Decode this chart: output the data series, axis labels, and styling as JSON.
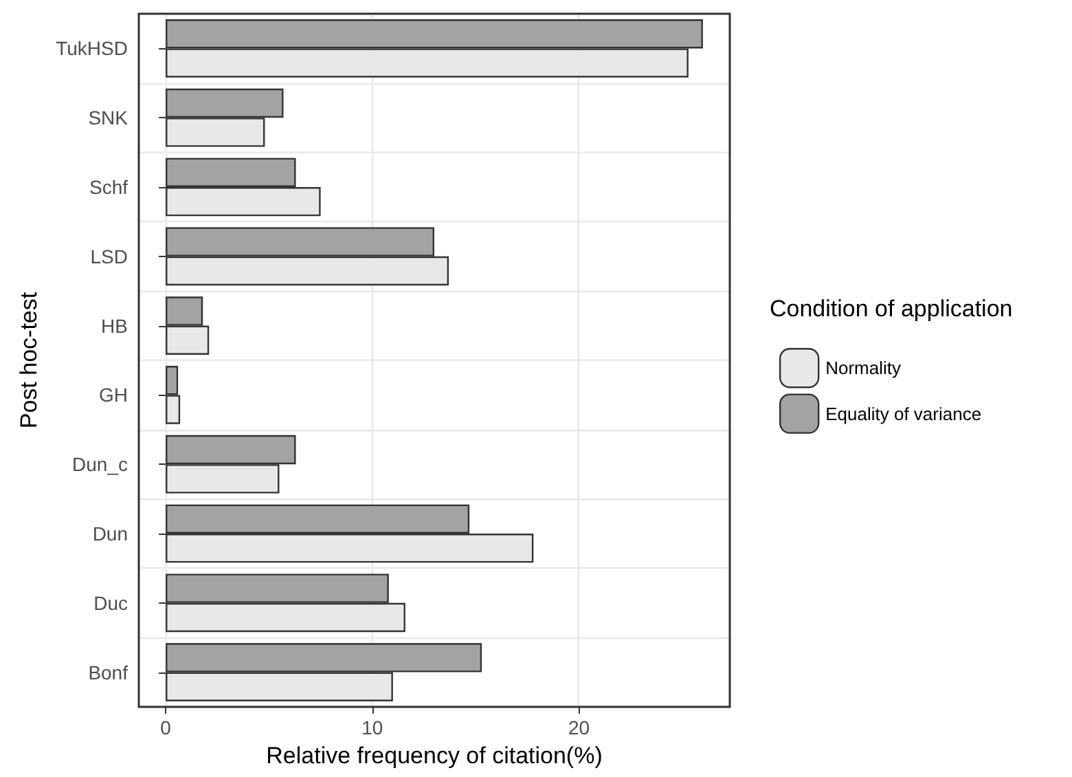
{
  "chart_data": {
    "type": "bar",
    "orientation": "horizontal",
    "xlabel": "Relative frequency of citation(%)",
    "ylabel": "Post hoc-test",
    "legend_title": "Condition of application",
    "categories": [
      "TukHSD",
      "SNK",
      "Schf",
      "LSD",
      "HB",
      "GH",
      "Dun_c",
      "Dun",
      "Duc",
      "Bonf"
    ],
    "series": [
      {
        "name": "Normality",
        "color": "#e8e8e8",
        "values": [
          25.3,
          4.8,
          7.5,
          13.7,
          2.1,
          0.7,
          5.5,
          17.8,
          11.6,
          11.0
        ]
      },
      {
        "name": "Equality of variance",
        "color": "#a3a3a3",
        "values": [
          26.0,
          5.7,
          6.3,
          13.0,
          1.8,
          0.6,
          6.3,
          14.7,
          10.8,
          15.3
        ]
      }
    ],
    "xlim": [
      -1.3,
      27.3
    ],
    "xticks": [
      0,
      10,
      20
    ],
    "grid": true,
    "legend": "right"
  }
}
